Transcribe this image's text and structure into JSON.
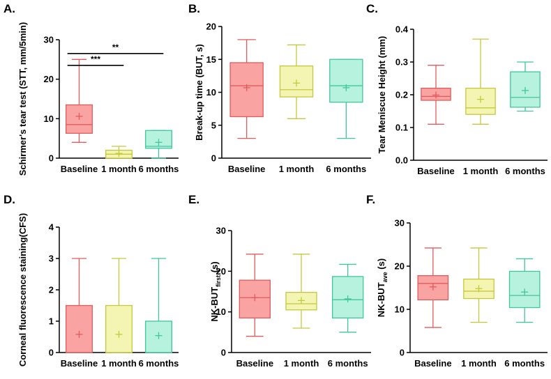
{
  "colors": {
    "baseline_fill": "#f9a3a3",
    "baseline_line": "#e35b5b",
    "one_month_fill": "#f4f5b3",
    "one_month_line": "#c6c83c",
    "six_months_fill": "#b6f2dd",
    "six_months_line": "#3fc79c",
    "axis": "#000000"
  },
  "chart_data": [
    {
      "panel_label": "A.",
      "type": "box",
      "title": "",
      "ylabel": "Schirmer's tear test (STT, mm/5min)",
      "categories": [
        "Baseline",
        "1 month",
        "6 months"
      ],
      "ylim": [
        0,
        30
      ],
      "yticks": [
        "0",
        "10",
        "20",
        "30"
      ],
      "boxes": [
        {
          "whisker_low": 4,
          "q1": 6.3,
          "median": 8.5,
          "q3": 13.5,
          "whisker_high": 25,
          "mean": 10.6
        },
        {
          "whisker_low": 0,
          "q1": 0,
          "median": 1,
          "q3": 2,
          "whisker_high": 3,
          "mean": 1.2
        },
        {
          "whisker_low": 0,
          "q1": 2.5,
          "median": 3,
          "q3": 7,
          "whisker_high": 7,
          "mean": 4
        }
      ],
      "significance": [
        {
          "from": 0,
          "to": 1,
          "y": 23.5,
          "label": "***"
        },
        {
          "from": 0,
          "to": 2,
          "y": 26.5,
          "label": "**"
        }
      ]
    },
    {
      "panel_label": "B.",
      "type": "box",
      "title": "",
      "ylabel": "Break-up time (BUT, s)",
      "categories": [
        "Baseline",
        "1 month",
        "6 months"
      ],
      "ylim": [
        0,
        20
      ],
      "yticks": [
        "0",
        "5",
        "10",
        "15",
        "20"
      ],
      "boxes": [
        {
          "whisker_low": 3,
          "q1": 6.3,
          "median": 11,
          "q3": 14.5,
          "whisker_high": 18,
          "mean": 10.7
        },
        {
          "whisker_low": 6,
          "q1": 9.3,
          "median": 10.4,
          "q3": 14,
          "whisker_high": 17.2,
          "mean": 11.4
        },
        {
          "whisker_low": 3,
          "q1": 8.5,
          "median": 11,
          "q3": 15,
          "whisker_high": 15,
          "mean": 10.7
        }
      ],
      "significance": []
    },
    {
      "panel_label": "C.",
      "type": "box",
      "title": "",
      "ylabel": "Tear Meniscue Height (mm)",
      "categories": [
        "Baseline",
        "1 month",
        "6 months"
      ],
      "ylim": [
        0,
        0.4
      ],
      "yticks": [
        "0.0",
        "0.1",
        "0.2",
        "0.3",
        "0.4"
      ],
      "boxes": [
        {
          "whisker_low": 0.11,
          "q1": 0.183,
          "median": 0.195,
          "q3": 0.22,
          "whisker_high": 0.29,
          "mean": 0.199
        },
        {
          "whisker_low": 0.11,
          "q1": 0.14,
          "median": 0.16,
          "q3": 0.22,
          "whisker_high": 0.37,
          "mean": 0.186
        },
        {
          "whisker_low": 0.15,
          "q1": 0.162,
          "median": 0.192,
          "q3": 0.27,
          "whisker_high": 0.3,
          "mean": 0.213
        }
      ],
      "significance": []
    },
    {
      "panel_label": "D.",
      "type": "box",
      "title": "",
      "ylabel": "Corneal fluorescence staining(CFS)",
      "categories": [
        "Baseline",
        "1 month",
        "6 months"
      ],
      "ylim": [
        0,
        4
      ],
      "yticks": [
        "0",
        "1",
        "2",
        "3",
        "4"
      ],
      "boxes": [
        {
          "whisker_low": 0,
          "q1": 0,
          "median": 0,
          "q3": 1.5,
          "whisker_high": 3,
          "mean": 0.58
        },
        {
          "whisker_low": 0,
          "q1": 0,
          "median": 0,
          "q3": 1.5,
          "whisker_high": 3,
          "mean": 0.58
        },
        {
          "whisker_low": 0,
          "q1": 0,
          "median": 0,
          "q3": 1,
          "whisker_high": 3,
          "mean": 0.54
        }
      ],
      "significance": []
    },
    {
      "panel_label": "E.",
      "type": "box",
      "title": "",
      "ylabel": "NK-BUT",
      "ylabel_sub": "first",
      "ylabel_unit": " (s)",
      "categories": [
        "Baseline",
        "1 month",
        "6 months"
      ],
      "ylim": [
        0,
        30
      ],
      "yticks": [
        "0",
        "10",
        "20",
        "30"
      ],
      "boxes": [
        {
          "whisker_low": 4,
          "q1": 8.5,
          "median": 13.5,
          "q3": 17.8,
          "whisker_high": 24.2,
          "mean": 13.5
        },
        {
          "whisker_low": 6,
          "q1": 10.5,
          "median": 12,
          "q3": 14.8,
          "whisker_high": 24.2,
          "mean": 12.8
        },
        {
          "whisker_low": 5,
          "q1": 8.5,
          "median": 13,
          "q3": 18.7,
          "whisker_high": 21.7,
          "mean": 13.2
        }
      ],
      "significance": []
    },
    {
      "panel_label": "F.",
      "type": "box",
      "title": "",
      "ylabel": "NK-BUT",
      "ylabel_sub": "ave",
      "ylabel_unit": " (s)",
      "categories": [
        "Baseline",
        "1 month",
        "6 months"
      ],
      "ylim": [
        0,
        30
      ],
      "yticks": [
        "0",
        "10",
        "20",
        "30"
      ],
      "boxes": [
        {
          "whisker_low": 5.8,
          "q1": 12.2,
          "median": 16,
          "q3": 17.8,
          "whisker_high": 24.2,
          "mean": 15.2
        },
        {
          "whisker_low": 7,
          "q1": 12.5,
          "median": 14.2,
          "q3": 17,
          "whisker_high": 24.2,
          "mean": 14.8
        },
        {
          "whisker_low": 7,
          "q1": 10.4,
          "median": 13.2,
          "q3": 18.8,
          "whisker_high": 21.7,
          "mean": 14
        }
      ],
      "significance": []
    }
  ]
}
